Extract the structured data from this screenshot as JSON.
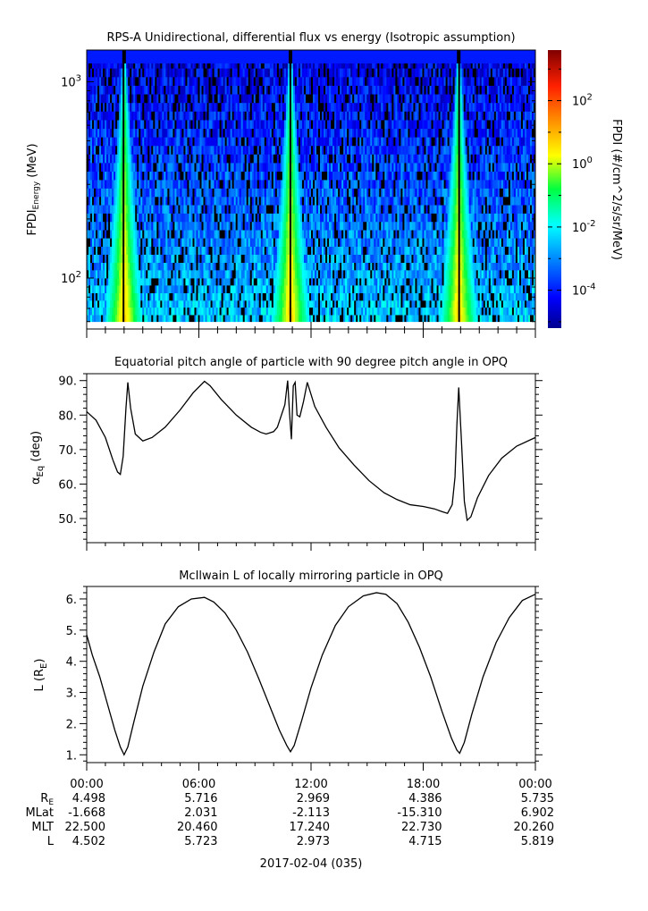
{
  "chart_data": [
    {
      "type": "heatmap",
      "title": "RPS-A Unidirectional, differential flux vs energy (Isotropic assumption)",
      "ylabel_main": "FPDI",
      "ylabel_sub": "Energy",
      "ylabel_unit": " (MeV)",
      "y_scale": "log",
      "ylim": [
        55,
        1450
      ],
      "yticks": [
        {
          "value": 100,
          "base": "10",
          "exp": "2"
        },
        {
          "value": 1000,
          "base": "10",
          "exp": "3"
        }
      ],
      "energy_bands": [
        60,
        65,
        71,
        77,
        84,
        92,
        100,
        110,
        120,
        132,
        145,
        160,
        176,
        194,
        214,
        236,
        260,
        287,
        317,
        350,
        387,
        428,
        473,
        523,
        578,
        640,
        708,
        783,
        866,
        958,
        1060,
        1173,
        1300
      ],
      "top_band": {
        "range": [
          1240,
          1450
        ],
        "log_flux": -4.0
      },
      "xlim": [
        0,
        24
      ],
      "peaks_hours": [
        2.0,
        10.9,
        19.9
      ],
      "colorbar": {
        "label": "FPDI (#/cm^2/s/sr/MeV)",
        "log_range": [
          -5.2,
          3.6
        ],
        "ticks": [
          {
            "value": -4,
            "base": "10",
            "exp": "-4"
          },
          {
            "value": -2,
            "base": "10",
            "exp": "-2"
          },
          {
            "value": 0,
            "base": "10",
            "exp": "0"
          },
          {
            "value": 2,
            "base": "10",
            "exp": "2"
          }
        ]
      }
    },
    {
      "type": "line",
      "title": "Equatorial pitch angle of particle with 90 degree pitch angle in OPQ",
      "ylabel_main": "α",
      "ylabel_sub": "Eq",
      "ylabel_unit": " (deg)",
      "xlim": [
        0,
        24
      ],
      "ylim": [
        43,
        92
      ],
      "yticks": [
        50,
        60,
        70,
        80,
        90
      ],
      "ytick_labels": [
        "50.",
        "60.",
        "70.",
        "80.",
        "90."
      ],
      "x": [
        0,
        0.5,
        1.0,
        1.4,
        1.65,
        1.8,
        1.95,
        2.1,
        2.2,
        2.35,
        2.6,
        3.0,
        3.5,
        4.2,
        5.0,
        5.7,
        6.3,
        6.6,
        7.2,
        8.0,
        8.8,
        9.3,
        9.6,
        10.0,
        10.2,
        10.6,
        10.75,
        10.85,
        10.95,
        11.05,
        11.15,
        11.25,
        11.4,
        11.6,
        11.8,
        12.2,
        12.8,
        13.5,
        14.3,
        15.1,
        15.9,
        16.6,
        17.3,
        18.0,
        18.6,
        19.0,
        19.3,
        19.55,
        19.7,
        19.8,
        19.9,
        20.05,
        20.2,
        20.35,
        20.55,
        20.9,
        21.5,
        22.2,
        23.0,
        24.0
      ],
      "y": [
        81.0,
        78.5,
        73.5,
        67.0,
        63.5,
        62.8,
        68.0,
        82.0,
        89.5,
        82.0,
        74.5,
        72.5,
        73.5,
        76.5,
        81.5,
        86.5,
        89.8,
        88.5,
        84.5,
        80.0,
        76.5,
        75.0,
        74.5,
        75.2,
        76.5,
        83.0,
        90.0,
        80.5,
        73.0,
        88.5,
        89.5,
        80.0,
        79.5,
        84.0,
        89.5,
        82.5,
        76.5,
        70.5,
        65.5,
        61.0,
        57.5,
        55.5,
        54.0,
        53.5,
        52.8,
        52.0,
        51.5,
        54.0,
        62.0,
        77.0,
        88.0,
        72.0,
        55.0,
        49.5,
        50.5,
        56.0,
        62.5,
        67.5,
        71.0,
        73.5
      ]
    },
    {
      "type": "line",
      "title": "McIlwain L of locally mirroring particle in OPQ",
      "ylabel_main": "L (R",
      "ylabel_sub": "E",
      "ylabel_unit": ")",
      "xlim": [
        0,
        24
      ],
      "ylim": [
        0.75,
        6.4
      ],
      "yticks": [
        1,
        2,
        3,
        4,
        5,
        6
      ],
      "ytick_labels": [
        "1.",
        "2.",
        "3.",
        "4.",
        "5.",
        "6."
      ],
      "x": [
        0,
        0.3,
        0.7,
        1.1,
        1.5,
        1.8,
        2.0,
        2.2,
        2.5,
        3.0,
        3.6,
        4.2,
        4.9,
        5.6,
        6.3,
        6.8,
        7.4,
        8.0,
        8.6,
        9.2,
        9.8,
        10.3,
        10.7,
        10.9,
        11.1,
        11.5,
        12.0,
        12.6,
        13.3,
        14.0,
        14.8,
        15.5,
        16.0,
        16.6,
        17.2,
        17.8,
        18.4,
        19.0,
        19.5,
        19.8,
        19.95,
        20.2,
        20.6,
        21.2,
        21.9,
        22.6,
        23.3,
        24.0
      ],
      "y": [
        4.85,
        4.2,
        3.5,
        2.65,
        1.8,
        1.25,
        1.0,
        1.25,
        2.0,
        3.2,
        4.3,
        5.2,
        5.75,
        6.0,
        6.05,
        5.9,
        5.55,
        5.0,
        4.3,
        3.45,
        2.55,
        1.8,
        1.3,
        1.1,
        1.3,
        2.1,
        3.15,
        4.2,
        5.15,
        5.75,
        6.1,
        6.2,
        6.15,
        5.85,
        5.25,
        4.45,
        3.5,
        2.4,
        1.55,
        1.15,
        1.05,
        1.4,
        2.3,
        3.5,
        4.6,
        5.4,
        5.95,
        6.15
      ]
    }
  ],
  "time_axis": {
    "labels": [
      "00:00",
      "06:00",
      "12:00",
      "18:00",
      "00:00"
    ],
    "date_label": "2017-02-04 (035)"
  },
  "ephemeris": {
    "rows": [
      {
        "name": "R",
        "sub": "E",
        "values": [
          "4.498",
          "5.716",
          "2.969",
          "4.386",
          "5.735"
        ]
      },
      {
        "name": "MLat",
        "sub": "",
        "values": [
          "-1.668",
          "2.031",
          "-2.113",
          "-15.310",
          "6.902"
        ]
      },
      {
        "name": "MLT",
        "sub": "",
        "values": [
          "22.500",
          "20.460",
          "17.240",
          "22.730",
          "20.260"
        ]
      },
      {
        "name": "L",
        "sub": "",
        "values": [
          "4.502",
          "5.723",
          "2.973",
          "4.715",
          "5.819"
        ]
      }
    ]
  }
}
